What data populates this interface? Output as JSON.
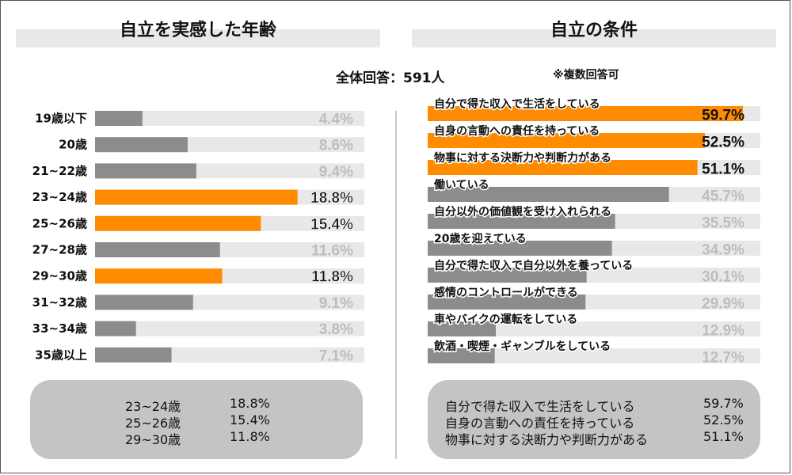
{
  "chart_data": [
    {
      "type": "bar",
      "title": "自立を実感した年齢",
      "categories": [
        "19歳以下",
        "20歳",
        "21~22歳",
        "23~24歳",
        "25~26歳",
        "27~28歳",
        "29~30歳",
        "31~32歳",
        "33~34歳",
        "35歳以上"
      ],
      "values": [
        4.4,
        8.6,
        9.4,
        18.8,
        15.4,
        11.6,
        11.8,
        9.1,
        3.8,
        7.1
      ],
      "value_labels": [
        "4.4%",
        "8.6%",
        "9.4%",
        "18.8%",
        "15.4%",
        "11.6%",
        "11.8%",
        "9.1%",
        "3.8%",
        "7.1%"
      ],
      "highlighted": [
        3,
        4,
        6
      ],
      "xlim": [
        0,
        25
      ],
      "orientation": "horizontal"
    },
    {
      "type": "bar",
      "title": "自立の条件",
      "categories": [
        "自分で得た収入で生活をしている",
        "自身の言動への責任を持っている",
        "物事に対する決断力や判断力がある",
        "働いている",
        "自分以外の価値観を受け入れられる",
        "20歳を迎えている",
        "自分で得た収入で自分以外を養っている",
        "感情のコントロールができる",
        "車やバイクの運転をしている",
        "飲酒・喫煙・ギャンブルをしている"
      ],
      "values": [
        59.7,
        52.5,
        51.1,
        45.7,
        35.5,
        34.9,
        30.1,
        29.9,
        12.9,
        12.7
      ],
      "value_labels": [
        "59.7%",
        "52.5%",
        "51.1%",
        "45.7%",
        "35.5%",
        "34.9%",
        "30.1%",
        "29.9%",
        "12.9%",
        "12.7%"
      ],
      "highlighted": [
        0,
        1,
        2
      ],
      "xlim": [
        0,
        63
      ],
      "orientation": "horizontal"
    }
  ],
  "header": {
    "respondents": "全体回答：591人",
    "multi_note": "※複数回答可"
  },
  "summary_left": [
    {
      "label": "23~24歳",
      "value": "18.8%"
    },
    {
      "label": "25~26歳",
      "value": "15.4%"
    },
    {
      "label": "29~30歳",
      "value": "11.8%"
    }
  ],
  "summary_right": [
    {
      "label": "自分で得た収入で生活をしている",
      "value": "59.7%"
    },
    {
      "label": "自身の言動への責任を持っている",
      "value": "52.5%"
    },
    {
      "label": "物事に対する決断力や判断力がある",
      "value": "51.1%"
    }
  ],
  "colors": {
    "highlight": "#ff8c00",
    "normal": "#8c8c8c",
    "track": "#e8e8e8",
    "label_normal": "#bdbdbd",
    "label_highlight": "#111111"
  }
}
